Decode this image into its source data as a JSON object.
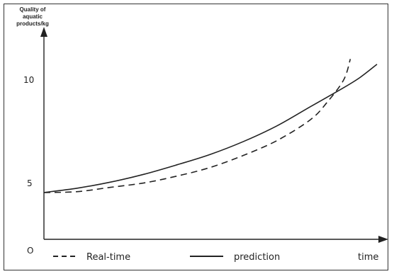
{
  "chart_data": {
    "type": "line",
    "title": "",
    "ylabel_lines": [
      "Quality of",
      "aquatic",
      "products/kg"
    ],
    "xlabel": "time",
    "origin_label": "O",
    "y_ticks": [
      {
        "value": 5,
        "label": "5"
      },
      {
        "value": 10,
        "label": "10"
      }
    ],
    "ylim": [
      0,
      12.5
    ],
    "xlim": [
      0,
      10
    ],
    "grid": false,
    "legend_position": "bottom",
    "series": [
      {
        "name": "Real-time",
        "style": "dashed",
        "points": [
          [
            0,
            2.7
          ],
          [
            1,
            2.75
          ],
          [
            2,
            3.0
          ],
          [
            3,
            3.25
          ],
          [
            4,
            3.65
          ],
          [
            5,
            4.15
          ],
          [
            6,
            4.85
          ],
          [
            7,
            5.7
          ],
          [
            8,
            6.9
          ],
          [
            8.5,
            7.9
          ],
          [
            9,
            9.2
          ],
          [
            9.2,
            10.4
          ]
        ]
      },
      {
        "name": "prediction",
        "style": "solid",
        "points": [
          [
            0,
            2.7
          ],
          [
            1,
            2.95
          ],
          [
            2,
            3.3
          ],
          [
            3,
            3.75
          ],
          [
            4,
            4.3
          ],
          [
            5,
            4.9
          ],
          [
            6,
            5.65
          ],
          [
            7,
            6.55
          ],
          [
            8,
            7.65
          ],
          [
            9,
            8.75
          ],
          [
            9.5,
            9.35
          ],
          [
            10,
            10.1
          ]
        ]
      }
    ]
  },
  "colors": {
    "line": "#222222",
    "frame": "#333333"
  }
}
